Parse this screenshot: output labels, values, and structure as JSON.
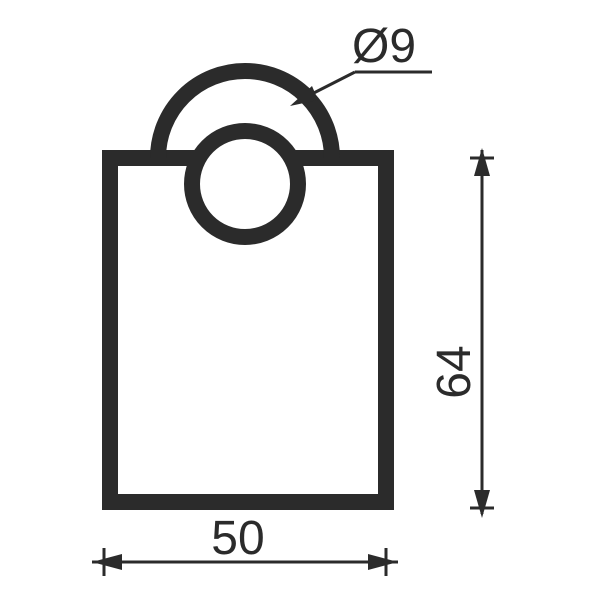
{
  "drawing": {
    "shackle_diameter_label": "Ø9",
    "width_label": "50",
    "height_label": "64"
  },
  "colors": {
    "line": "#2b2b2b",
    "background": "#ffffff"
  }
}
